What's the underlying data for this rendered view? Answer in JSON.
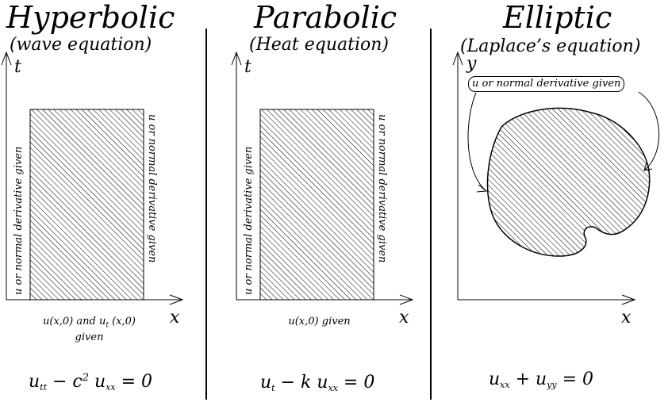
{
  "panels": [
    {
      "title": "Hyperbolic",
      "subtitle": "(wave equation)",
      "y_axis": "t",
      "x_axis": "x",
      "left_bc": "u or normal derivative given",
      "right_bc": "u or normal derivative given",
      "bottom_caption_line1": "u(x,0) and u",
      "bottom_caption_sub": "t",
      "bottom_caption_rest": " (x,0)",
      "bottom_caption_line2": "given",
      "equation": {
        "t1": "u",
        "s1": "tt",
        "t2": " − c",
        "sup": "2",
        "t3": " u",
        "s2": "xx",
        "t4": " = 0"
      }
    },
    {
      "title": "Parabolic",
      "subtitle": "(Heat equation)",
      "y_axis": "t",
      "x_axis": "x",
      "left_bc": "u or normal derivative given",
      "right_bc": "u or normal derivative given",
      "bottom_caption": "u(x,0) given",
      "equation": {
        "t1": "u",
        "s1": "t",
        "t2": " − k u",
        "s2": "xx",
        "t3": " = 0"
      }
    },
    {
      "title": "Elliptic",
      "subtitle": "(Laplace’s equation)",
      "y_axis": "y",
      "x_axis": "x",
      "boundary_label": "u or normal derivative given",
      "equation": {
        "t1": "u",
        "s1": "xx",
        "t2": " + u",
        "s2": "yy",
        "t3": " = 0"
      }
    }
  ]
}
